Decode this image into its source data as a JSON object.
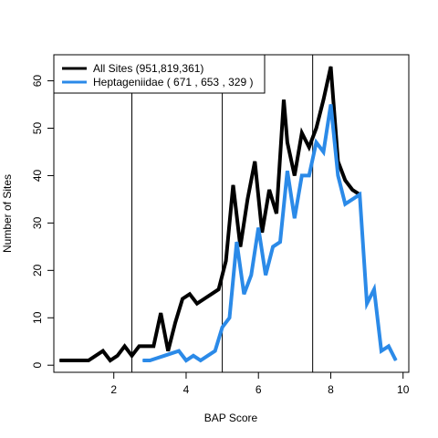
{
  "chart_data": {
    "type": "line",
    "title": "",
    "xlabel": "BAP Score",
    "ylabel": "Number of Sites",
    "xlim": [
      0,
      10
    ],
    "ylim": [
      0,
      65
    ],
    "x_ticks": [
      2,
      4,
      6,
      8,
      10
    ],
    "y_ticks": [
      0,
      10,
      20,
      30,
      40,
      50,
      60
    ],
    "grid": false,
    "legend_position": "top-left",
    "vertical_lines": [
      2.5,
      5.0,
      7.5
    ],
    "series": [
      {
        "name": "All Sites (951,819,361)",
        "color": "#000000",
        "x": [
          0.5,
          0.7,
          0.9,
          1.1,
          1.3,
          1.5,
          1.7,
          1.9,
          2.1,
          2.3,
          2.5,
          2.7,
          2.9,
          3.1,
          3.3,
          3.5,
          3.7,
          3.9,
          4.1,
          4.3,
          4.5,
          4.7,
          4.9,
          5.1,
          5.3,
          5.5,
          5.7,
          5.9,
          6.1,
          6.3,
          6.5,
          6.7,
          6.8,
          7.0,
          7.2,
          7.4,
          7.6,
          7.8,
          8.0,
          8.2,
          8.4,
          8.6,
          8.8
        ],
        "values": [
          1,
          1,
          1,
          1,
          1,
          2,
          3,
          1,
          2,
          4,
          2,
          4,
          4,
          4,
          11,
          3,
          9,
          14,
          15,
          13,
          14,
          15,
          16,
          22,
          38,
          25,
          35,
          43,
          28,
          37,
          32,
          56,
          47,
          40,
          49,
          46,
          50,
          56,
          63,
          43,
          39,
          37,
          36
        ]
      },
      {
        "name": "Heptageniidae  ( 671 , 653 , 329 )",
        "color": "#2b8ae8",
        "x": [
          2.8,
          3.0,
          3.2,
          3.4,
          3.6,
          3.8,
          4.0,
          4.2,
          4.4,
          4.6,
          4.8,
          5.0,
          5.2,
          5.4,
          5.6,
          5.8,
          6.0,
          6.2,
          6.4,
          6.6,
          6.8,
          7.0,
          7.2,
          7.4,
          7.6,
          7.8,
          8.0,
          8.2,
          8.4,
          8.6,
          8.8,
          9.0,
          9.2,
          9.4,
          9.6,
          9.8
        ],
        "values": [
          1,
          1,
          1.5,
          2,
          2.5,
          3,
          1,
          2,
          1,
          2,
          3,
          8,
          10,
          26,
          15,
          19,
          29,
          19,
          25,
          26,
          41,
          31,
          40,
          40,
          47,
          45,
          55,
          40,
          34,
          35,
          36,
          13,
          16,
          3,
          4,
          1
        ]
      }
    ]
  }
}
